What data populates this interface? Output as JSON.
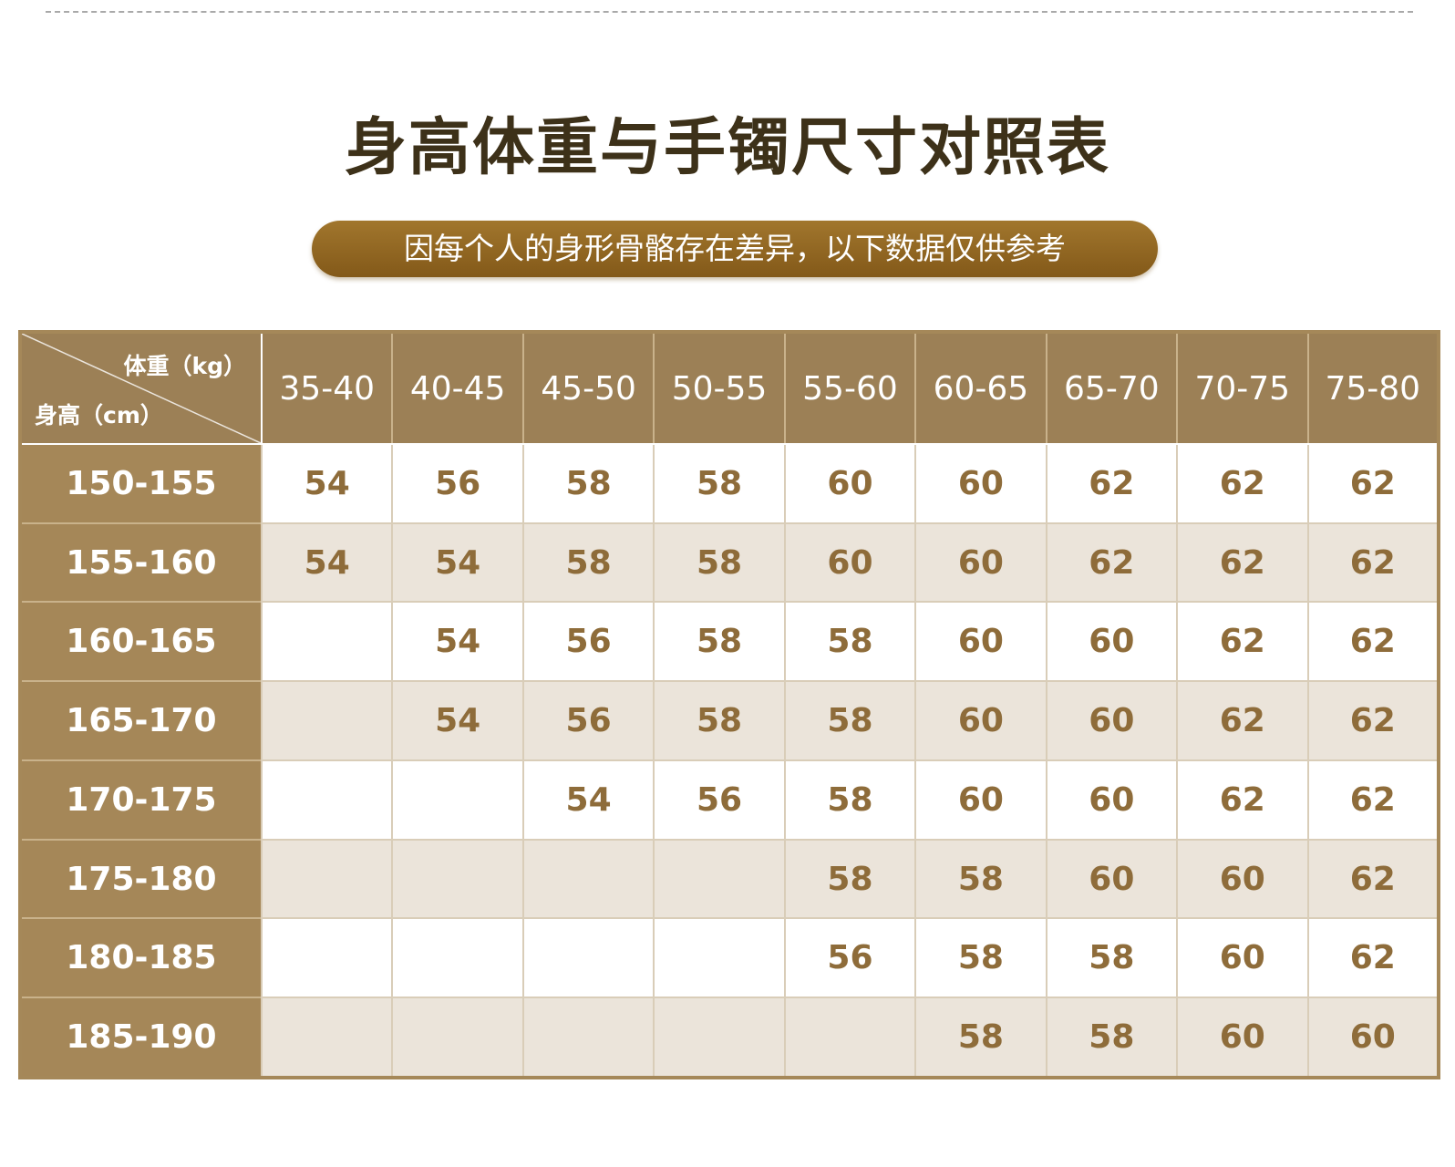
{
  "title": "身高体重与手镯尺寸对照表",
  "subtitle": "因每个人的身形骨骼存在差异，以下数据仅供参考",
  "table": {
    "corner_weight_label": "体重（kg）",
    "corner_height_label": "身高（cm）",
    "weights": [
      "35-40",
      "40-45",
      "45-50",
      "50-55",
      "55-60",
      "60-65",
      "65-70",
      "70-75",
      "75-80"
    ],
    "rows": [
      {
        "height": "150-155",
        "sizes": [
          "54",
          "56",
          "58",
          "58",
          "60",
          "60",
          "62",
          "62",
          "62"
        ]
      },
      {
        "height": "155-160",
        "sizes": [
          "54",
          "54",
          "58",
          "58",
          "60",
          "60",
          "62",
          "62",
          "62"
        ]
      },
      {
        "height": "160-165",
        "sizes": [
          "",
          "54",
          "56",
          "58",
          "58",
          "60",
          "60",
          "62",
          "62"
        ]
      },
      {
        "height": "165-170",
        "sizes": [
          "",
          "54",
          "56",
          "58",
          "58",
          "60",
          "60",
          "62",
          "62"
        ]
      },
      {
        "height": "170-175",
        "sizes": [
          "",
          "",
          "54",
          "56",
          "58",
          "60",
          "60",
          "62",
          "62"
        ]
      },
      {
        "height": "175-180",
        "sizes": [
          "",
          "",
          "",
          "",
          "58",
          "58",
          "60",
          "60",
          "62"
        ]
      },
      {
        "height": "180-185",
        "sizes": [
          "",
          "",
          "",
          "",
          "56",
          "58",
          "58",
          "60",
          "62"
        ]
      },
      {
        "height": "185-190",
        "sizes": [
          "",
          "",
          "",
          "",
          "",
          "58",
          "58",
          "60",
          "60"
        ]
      }
    ]
  },
  "colors": {
    "title": "#3d3119",
    "pill": "#94692a",
    "header": "#9c8056",
    "row_head": "#a58758",
    "value_text": "#8e6c3a",
    "stripe": "#ebe4da"
  }
}
